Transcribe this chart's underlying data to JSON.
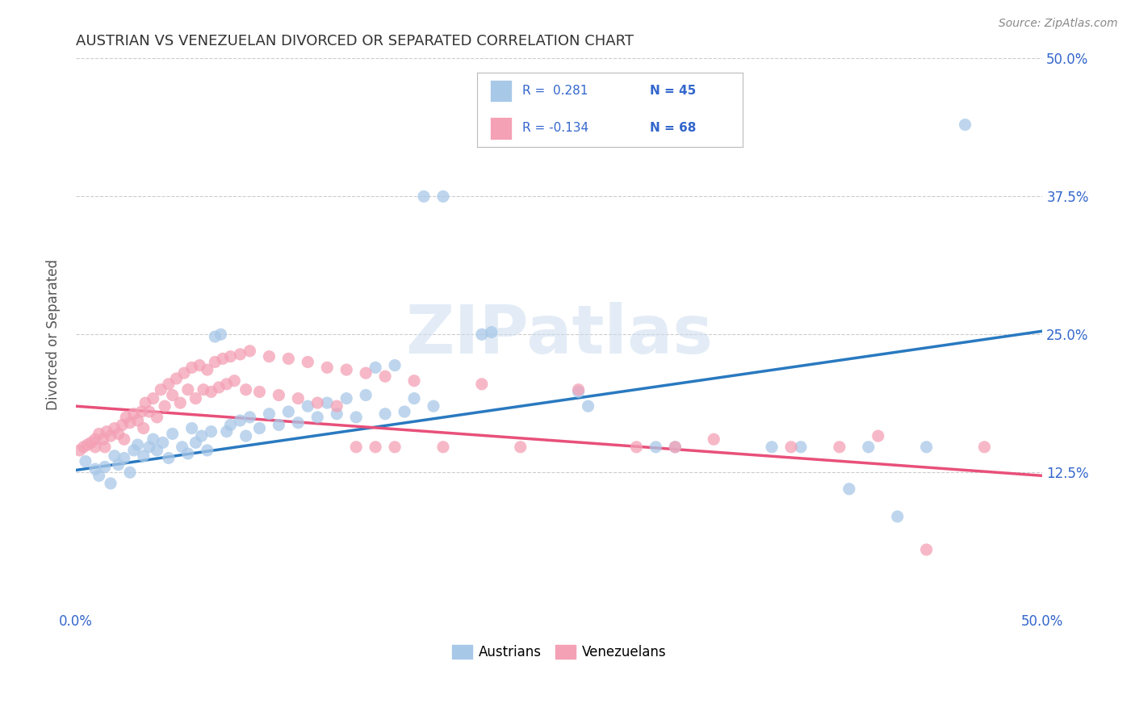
{
  "title": "AUSTRIAN VS VENEZUELAN DIVORCED OR SEPARATED CORRELATION CHART",
  "source": "Source: ZipAtlas.com",
  "ylabel": "Divorced or Separated",
  "xlim": [
    0.0,
    0.5
  ],
  "ylim": [
    0.0,
    0.5
  ],
  "yticks": [
    0.125,
    0.25,
    0.375,
    0.5
  ],
  "ytick_labels": [
    "12.5%",
    "25.0%",
    "37.5%",
    "50.0%"
  ],
  "austrian_color": "#a8c8e8",
  "venezuelan_color": "#f4a0b5",
  "austrian_line_color": "#2979c0",
  "venezuelan_line_color": "#e8507a",
  "legend_text_color": "#3366cc",
  "watermark": "ZIPatlas",
  "background_color": "#ffffff",
  "grid_color": "#cccccc",
  "title_color": "#333333",
  "austrian_points": [
    [
      0.005,
      0.135
    ],
    [
      0.01,
      0.128
    ],
    [
      0.012,
      0.122
    ],
    [
      0.015,
      0.13
    ],
    [
      0.018,
      0.115
    ],
    [
      0.02,
      0.14
    ],
    [
      0.022,
      0.132
    ],
    [
      0.025,
      0.138
    ],
    [
      0.028,
      0.125
    ],
    [
      0.03,
      0.145
    ],
    [
      0.032,
      0.15
    ],
    [
      0.035,
      0.14
    ],
    [
      0.038,
      0.148
    ],
    [
      0.04,
      0.155
    ],
    [
      0.042,
      0.145
    ],
    [
      0.045,
      0.152
    ],
    [
      0.048,
      0.138
    ],
    [
      0.05,
      0.16
    ],
    [
      0.055,
      0.148
    ],
    [
      0.058,
      0.142
    ],
    [
      0.06,
      0.165
    ],
    [
      0.062,
      0.152
    ],
    [
      0.065,
      0.158
    ],
    [
      0.068,
      0.145
    ],
    [
      0.07,
      0.162
    ],
    [
      0.072,
      0.248
    ],
    [
      0.075,
      0.25
    ],
    [
      0.078,
      0.162
    ],
    [
      0.08,
      0.168
    ],
    [
      0.085,
      0.172
    ],
    [
      0.088,
      0.158
    ],
    [
      0.09,
      0.175
    ],
    [
      0.095,
      0.165
    ],
    [
      0.1,
      0.178
    ],
    [
      0.105,
      0.168
    ],
    [
      0.11,
      0.18
    ],
    [
      0.115,
      0.17
    ],
    [
      0.12,
      0.185
    ],
    [
      0.125,
      0.175
    ],
    [
      0.13,
      0.188
    ],
    [
      0.135,
      0.178
    ],
    [
      0.14,
      0.192
    ],
    [
      0.145,
      0.175
    ],
    [
      0.15,
      0.195
    ],
    [
      0.155,
      0.22
    ],
    [
      0.16,
      0.178
    ],
    [
      0.165,
      0.222
    ],
    [
      0.17,
      0.18
    ],
    [
      0.175,
      0.192
    ],
    [
      0.18,
      0.375
    ],
    [
      0.185,
      0.185
    ],
    [
      0.19,
      0.375
    ],
    [
      0.21,
      0.25
    ],
    [
      0.215,
      0.252
    ],
    [
      0.26,
      0.198
    ],
    [
      0.265,
      0.185
    ],
    [
      0.3,
      0.148
    ],
    [
      0.31,
      0.148
    ],
    [
      0.36,
      0.148
    ],
    [
      0.375,
      0.148
    ],
    [
      0.4,
      0.11
    ],
    [
      0.41,
      0.148
    ],
    [
      0.425,
      0.085
    ],
    [
      0.44,
      0.148
    ],
    [
      0.46,
      0.44
    ]
  ],
  "venezuelan_points": [
    [
      0.002,
      0.145
    ],
    [
      0.004,
      0.148
    ],
    [
      0.006,
      0.15
    ],
    [
      0.008,
      0.152
    ],
    [
      0.01,
      0.148
    ],
    [
      0.01,
      0.155
    ],
    [
      0.012,
      0.16
    ],
    [
      0.014,
      0.155
    ],
    [
      0.015,
      0.148
    ],
    [
      0.016,
      0.162
    ],
    [
      0.018,
      0.158
    ],
    [
      0.02,
      0.165
    ],
    [
      0.022,
      0.16
    ],
    [
      0.024,
      0.168
    ],
    [
      0.025,
      0.155
    ],
    [
      0.026,
      0.175
    ],
    [
      0.028,
      0.17
    ],
    [
      0.03,
      0.178
    ],
    [
      0.032,
      0.172
    ],
    [
      0.034,
      0.18
    ],
    [
      0.035,
      0.165
    ],
    [
      0.036,
      0.188
    ],
    [
      0.038,
      0.18
    ],
    [
      0.04,
      0.192
    ],
    [
      0.042,
      0.175
    ],
    [
      0.044,
      0.2
    ],
    [
      0.046,
      0.185
    ],
    [
      0.048,
      0.205
    ],
    [
      0.05,
      0.195
    ],
    [
      0.052,
      0.21
    ],
    [
      0.054,
      0.188
    ],
    [
      0.056,
      0.215
    ],
    [
      0.058,
      0.2
    ],
    [
      0.06,
      0.22
    ],
    [
      0.062,
      0.192
    ],
    [
      0.064,
      0.222
    ],
    [
      0.066,
      0.2
    ],
    [
      0.068,
      0.218
    ],
    [
      0.07,
      0.198
    ],
    [
      0.072,
      0.225
    ],
    [
      0.074,
      0.202
    ],
    [
      0.076,
      0.228
    ],
    [
      0.078,
      0.205
    ],
    [
      0.08,
      0.23
    ],
    [
      0.082,
      0.208
    ],
    [
      0.085,
      0.232
    ],
    [
      0.088,
      0.2
    ],
    [
      0.09,
      0.235
    ],
    [
      0.095,
      0.198
    ],
    [
      0.1,
      0.23
    ],
    [
      0.105,
      0.195
    ],
    [
      0.11,
      0.228
    ],
    [
      0.115,
      0.192
    ],
    [
      0.12,
      0.225
    ],
    [
      0.125,
      0.188
    ],
    [
      0.13,
      0.22
    ],
    [
      0.135,
      0.185
    ],
    [
      0.14,
      0.218
    ],
    [
      0.145,
      0.148
    ],
    [
      0.15,
      0.215
    ],
    [
      0.155,
      0.148
    ],
    [
      0.16,
      0.212
    ],
    [
      0.165,
      0.148
    ],
    [
      0.175,
      0.208
    ],
    [
      0.19,
      0.148
    ],
    [
      0.21,
      0.205
    ],
    [
      0.23,
      0.148
    ],
    [
      0.26,
      0.2
    ],
    [
      0.29,
      0.148
    ],
    [
      0.31,
      0.148
    ],
    [
      0.33,
      0.155
    ],
    [
      0.37,
      0.148
    ],
    [
      0.395,
      0.148
    ],
    [
      0.415,
      0.158
    ],
    [
      0.44,
      0.055
    ],
    [
      0.47,
      0.148
    ]
  ],
  "austrian_trend": [
    0.0,
    0.5,
    0.127,
    0.253
  ],
  "venezuelan_trend": [
    0.0,
    0.5,
    0.185,
    0.122
  ]
}
